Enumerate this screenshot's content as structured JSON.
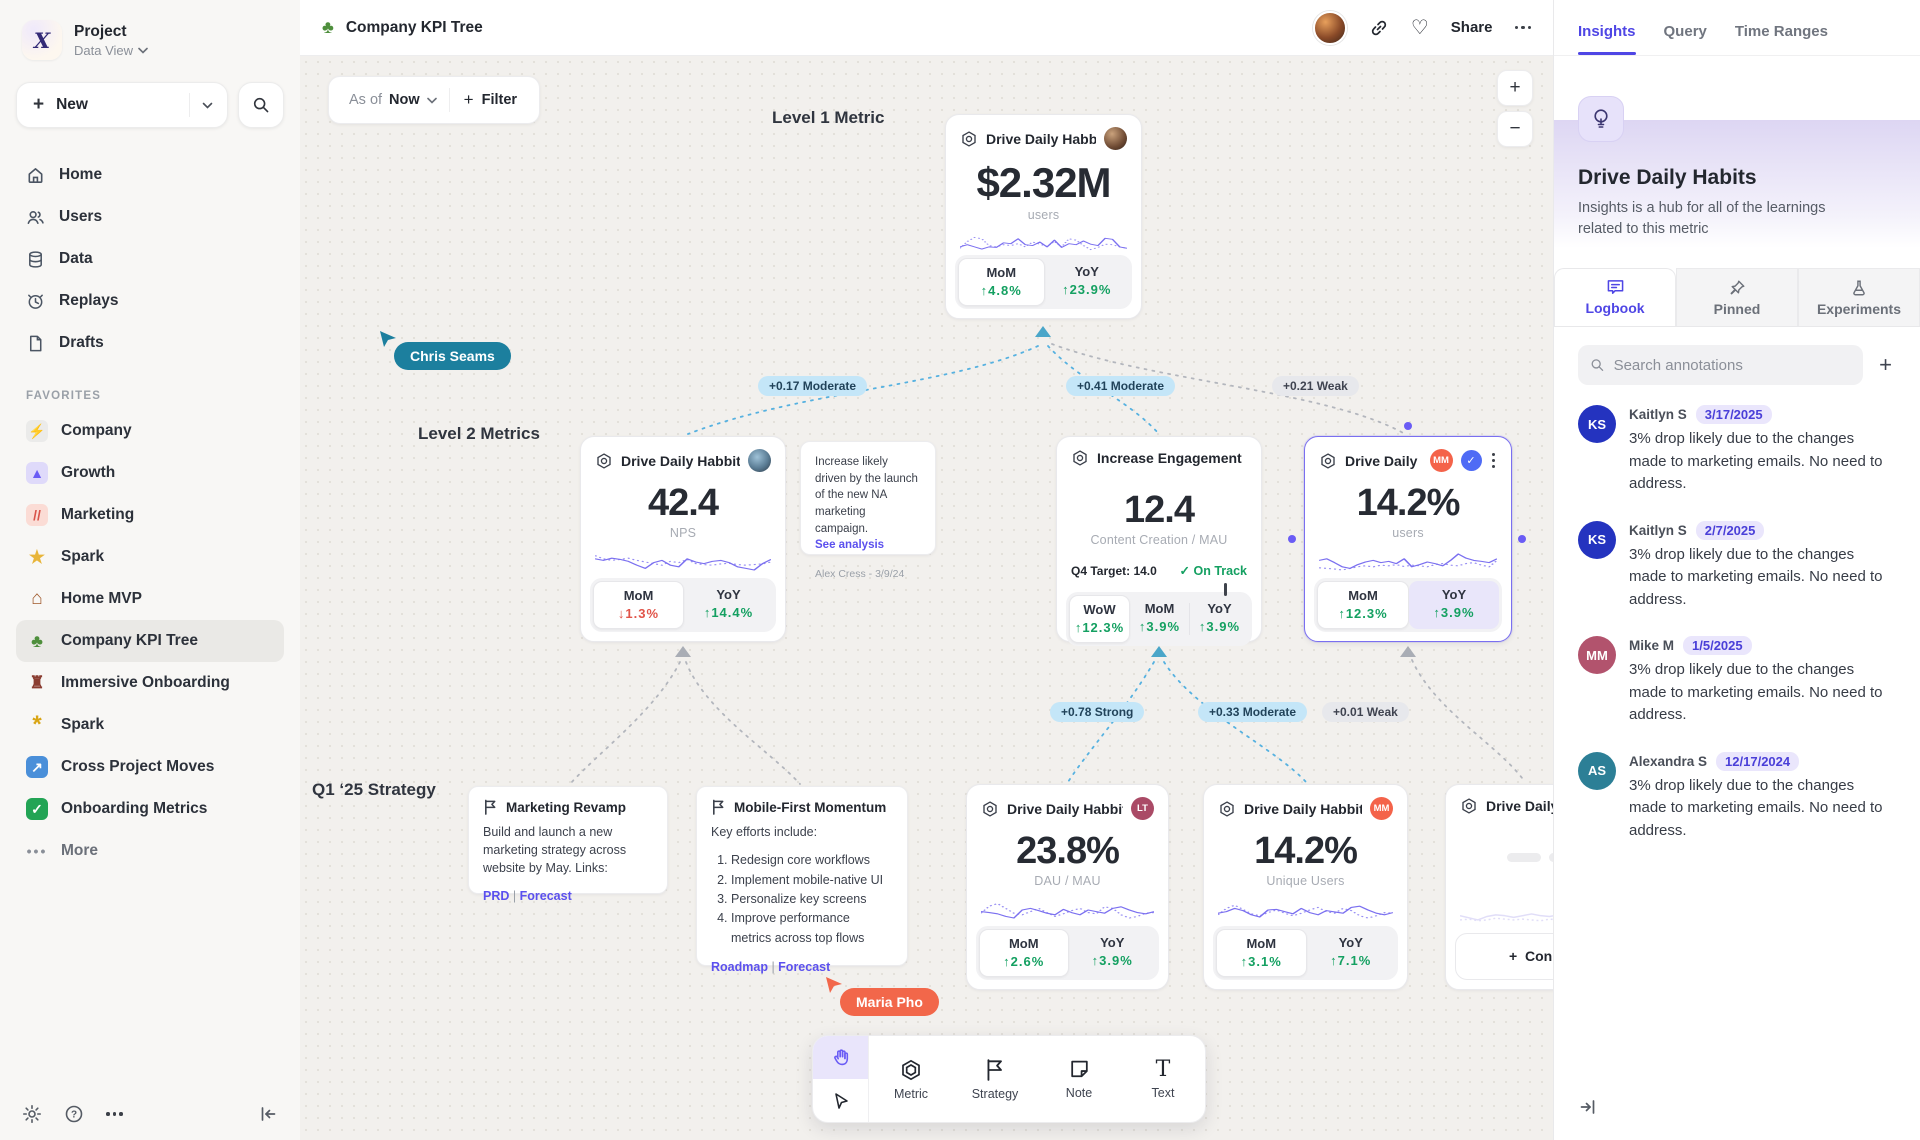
{
  "sidebar": {
    "project_name": "Project",
    "project_view": "Data View",
    "new_label": "New",
    "nav": [
      {
        "label": "Home"
      },
      {
        "label": "Users"
      },
      {
        "label": "Data"
      },
      {
        "label": "Replays"
      },
      {
        "label": "Drafts"
      }
    ],
    "favorites_header": "FAVORITES",
    "favorites": [
      {
        "label": "Company",
        "glyph": "⚡",
        "bg": "#ebebea",
        "fg": "#374151"
      },
      {
        "label": "Growth",
        "glyph": "▲",
        "bg": "#dfdafa",
        "fg": "#6a5cf5"
      },
      {
        "label": "Marketing",
        "glyph": "//",
        "bg": "#fbdcd5",
        "fg": "#d9534a"
      },
      {
        "label": "Spark",
        "glyph": "★",
        "bg": "transparent",
        "fg": "#e8b53a"
      },
      {
        "label": "Home MVP",
        "glyph": "⌂",
        "bg": "transparent",
        "fg": "#a05a2c"
      },
      {
        "label": "Company KPI Tree",
        "glyph": "♣",
        "bg": "transparent",
        "fg": "#4e8f3c"
      },
      {
        "label": "Immersive Onboarding",
        "glyph": "♜",
        "bg": "transparent",
        "fg": "#8a3d31"
      },
      {
        "label": "Spark",
        "glyph": "*",
        "bg": "transparent",
        "fg": "#d9a514"
      },
      {
        "label": "Cross Project Moves",
        "glyph": "↗",
        "bg": "#4a8fd9",
        "fg": "#ffffff"
      },
      {
        "label": "Onboarding Metrics",
        "glyph": "✓",
        "bg": "#23a455",
        "fg": "#ffffff"
      }
    ],
    "more_label": "More"
  },
  "topbar": {
    "icon_glyph": "♣",
    "title": "Company KPI Tree",
    "share_label": "Share"
  },
  "canvas": {
    "asof_prefix": "As of",
    "asof_value": "Now",
    "filter_label": "Filter",
    "zoom_in": "+",
    "zoom_out": "−",
    "section_labels": {
      "level1": "Level 1 Metric",
      "level2": "Level 2 Metrics",
      "strategy": "Q1 ‘25 Strategy"
    },
    "cursors": {
      "chris": "Chris Seams",
      "maria": "Maria Pho"
    },
    "edges": {
      "e1": "+0.17 Moderate",
      "e2": "+0.41 Moderate",
      "e3": "+0.21 Weak",
      "e4": "+0.78 Strong",
      "e5": "+0.33 Moderate",
      "e6": "+0.01 Weak"
    },
    "cards": {
      "l1": {
        "title": "Drive Daily Habbits",
        "value": "$2.32M",
        "unit": "users",
        "mom_label": "MoM",
        "mom_delta": "↑4.8%",
        "yoy_label": "YoY",
        "yoy_delta": "↑23.9%",
        "spark": {
          "solid": [
            30,
            38,
            30,
            22,
            30,
            28,
            45,
            42,
            60,
            38,
            35,
            48,
            30,
            55,
            28,
            42,
            38,
            52,
            40,
            35,
            62,
            58,
            30,
            25
          ],
          "dotted": [
            25,
            50,
            65,
            60,
            35,
            30,
            38,
            35,
            42,
            30,
            48,
            40,
            32,
            50,
            30,
            60,
            55,
            35,
            20,
            28,
            40,
            38,
            30,
            25
          ]
        }
      },
      "a": {
        "title": "Drive Daily Habbits",
        "value": "42.4",
        "unit": "NPS",
        "mom_label": "MoM",
        "mom_delta": "↓1.3%",
        "yoy_label": "YoY",
        "yoy_delta": "↑14.4%",
        "spark": {
          "solid": [
            60,
            55,
            62,
            58,
            52,
            40,
            30,
            48,
            55,
            40,
            35,
            60,
            50,
            45,
            52,
            55,
            48,
            35,
            30,
            25,
            45,
            58
          ],
          "dotted": [
            70,
            60,
            55,
            58,
            62,
            55,
            50,
            45,
            40,
            52,
            48,
            58,
            45,
            42,
            40,
            44,
            46,
            42,
            40,
            42,
            44,
            50
          ]
        }
      },
      "b": {
        "title": "Increase Engagement",
        "value": "12.4",
        "unit": "Content Creation / MAU",
        "target_label": "Q4 Target: 14.0",
        "status_check": "✓",
        "status_label": "On Track",
        "progress_pct": 88,
        "wow_label": "WoW",
        "wow_delta": "↑12.3%",
        "mom_label": "MoM",
        "mom_delta": "↑3.9%",
        "yoy_label": "YoY",
        "yoy_delta": "↑3.9%"
      },
      "c": {
        "title": "Drive Daily Habb..",
        "badge": "MM",
        "badge_bg": "#f4634a",
        "verify_glyph": "✓",
        "value": "14.2%",
        "unit": "users",
        "mom_label": "MoM",
        "mom_delta": "↑12.3%",
        "yoy_label": "YoY",
        "yoy_delta": "↑3.9%",
        "spark": {
          "solid": [
            55,
            60,
            48,
            35,
            30,
            42,
            50,
            55,
            48,
            52,
            45,
            60,
            35,
            42,
            50,
            45,
            38,
            55,
            75,
            62,
            55,
            52,
            48,
            60
          ],
          "dotted": [
            32,
            30,
            28,
            25,
            30,
            35,
            38,
            35,
            40,
            38,
            42,
            36,
            40,
            38,
            35,
            42,
            45,
            40,
            38,
            45,
            48,
            40,
            35,
            55
          ]
        }
      },
      "d": {
        "title": "Drive Daily Habbits",
        "badge": "LT",
        "badge_bg": "#aa4a66",
        "value": "23.8%",
        "unit": "DAU / MAU",
        "mom_label": "MoM",
        "mom_delta": "↑2.6%",
        "yoy_label": "YoY",
        "yoy_delta": "↑3.9%",
        "spark": {
          "solid": [
            45,
            42,
            38,
            30,
            25,
            50,
            55,
            48,
            40,
            35,
            52,
            42,
            35,
            50,
            45,
            40,
            55,
            60,
            50,
            42,
            38,
            45
          ],
          "dotted": [
            40,
            62,
            70,
            55,
            40,
            35,
            45,
            55,
            42,
            30,
            38,
            48,
            55,
            42,
            38,
            60,
            55,
            35,
            25,
            30,
            40,
            42
          ]
        }
      },
      "e": {
        "title": "Drive Daily Habbits",
        "badge": "MM",
        "badge_bg": "#f4634a",
        "value": "14.2%",
        "unit": "Unique Users",
        "mom_label": "MoM",
        "mom_delta": "↑3.1%",
        "yoy_label": "YoY",
        "yoy_delta": "↑7.1%",
        "spark": {
          "solid": [
            40,
            45,
            55,
            48,
            35,
            28,
            50,
            52,
            45,
            38,
            55,
            42,
            35,
            48,
            44,
            40,
            58,
            62,
            50,
            40,
            35,
            42
          ],
          "dotted": [
            35,
            55,
            65,
            52,
            38,
            32,
            42,
            50,
            40,
            32,
            40,
            50,
            58,
            45,
            40,
            55,
            48,
            32,
            25,
            32,
            42,
            40
          ]
        }
      },
      "f": {
        "title": "Drive Daily Hab",
        "connect_label": "Connect",
        "spark": {
          "solid": [
            40,
            35,
            30,
            38,
            42,
            40,
            36,
            40,
            44,
            40,
            38,
            42,
            40,
            36,
            40,
            48,
            42,
            38,
            35,
            40
          ],
          "dotted": [
            30,
            32,
            28,
            30,
            34,
            32,
            30,
            32,
            30,
            28,
            32,
            30,
            28,
            30,
            32,
            30,
            28,
            30,
            32,
            30
          ]
        }
      }
    },
    "annotation_note": {
      "text": "Increase likely driven by the launch of the new NA marketing campaign.",
      "link_label": "See analysis",
      "author": "Alex Cress - 3/9/24"
    },
    "strategies": {
      "marketing": {
        "title": "Marketing Revamp",
        "body": "Build and launch a new marketing strategy across website by May. Links:",
        "link1": "PRD",
        "link2": "Forecast"
      },
      "mobile": {
        "title": "Mobile-First Momentum",
        "intro": "Key efforts include:",
        "items": [
          "Redesign core workflows",
          "Implement mobile-native UI",
          "Personalize key screens",
          "Improve performance metrics across top flows"
        ],
        "link1": "Roadmap",
        "link2": "Forecast"
      }
    },
    "toolbar": {
      "metric_label": "Metric",
      "strategy_label": "Strategy",
      "note_label": "Note",
      "text_label": "Text",
      "text_glyph": "T"
    }
  },
  "insights": {
    "tabs": {
      "insights": "Insights",
      "query": "Query",
      "time_ranges": "Time Ranges"
    },
    "title": "Drive Daily Habits",
    "description": "Insights is a hub for all of the learnings related to this metric",
    "subtabs": {
      "logbook": "Logbook",
      "pinned": "Pinned",
      "experiments": "Experiments"
    },
    "search_placeholder": "Search annotations",
    "add_label": "+",
    "annotations": [
      {
        "initials": "KS",
        "color": "#2433bf",
        "name": "Kaitlyn S",
        "date": "3/17/2025",
        "text": "3% drop likely due to the changes made to marketing emails. No need to address."
      },
      {
        "initials": "KS",
        "color": "#2433bf",
        "name": "Kaitlyn S",
        "date": "2/7/2025",
        "text": "3% drop likely due to the changes made to marketing emails. No need to address."
      },
      {
        "initials": "MM",
        "color": "#b2536d",
        "name": "Mike M",
        "date": "1/5/2025",
        "text": "3% drop likely due to the changes made to marketing emails. No need to address."
      },
      {
        "initials": "AS",
        "color": "#2c7f96",
        "name": "Alexandra S",
        "date": "12/17/2024",
        "text": "3% drop likely due to the changes made to marketing emails. No need to address."
      }
    ]
  }
}
